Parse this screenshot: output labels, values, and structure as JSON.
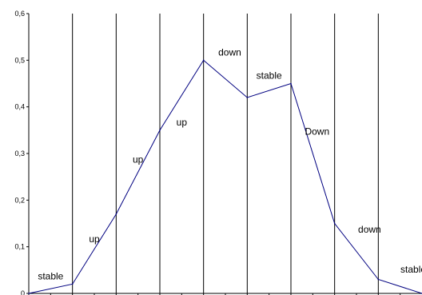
{
  "chart_data": {
    "type": "line",
    "title": "",
    "xlabel": "",
    "ylabel": "",
    "ylim": [
      0,
      0.6
    ],
    "yticks": [
      "0",
      "0,1",
      "0,2",
      "0,3",
      "0,4",
      "0,5",
      "0,6"
    ],
    "x": [
      0,
      1,
      2,
      3,
      4,
      5,
      6,
      7,
      8,
      9
    ],
    "series": [
      {
        "values": [
          0,
          0.02,
          0.17,
          0.35,
          0.5,
          0.42,
          0.45,
          0.15,
          0.03,
          0
        ]
      }
    ],
    "annotations": [
      {
        "text": "stable",
        "x": 0.5,
        "y": 0.03
      },
      {
        "text": "up",
        "x": 1.5,
        "y": 0.11
      },
      {
        "text": "up",
        "x": 2.5,
        "y": 0.28
      },
      {
        "text": "up",
        "x": 3.5,
        "y": 0.36
      },
      {
        "text": "down",
        "x": 4.6,
        "y": 0.51
      },
      {
        "text": "stable",
        "x": 5.5,
        "y": 0.46
      },
      {
        "text": "Down",
        "x": 6.6,
        "y": 0.34
      },
      {
        "text": "down",
        "x": 7.8,
        "y": 0.13
      },
      {
        "text": "stable",
        "x": 8.8,
        "y": 0.045
      }
    ],
    "grid_vertical": true,
    "line_color": "#000080"
  }
}
